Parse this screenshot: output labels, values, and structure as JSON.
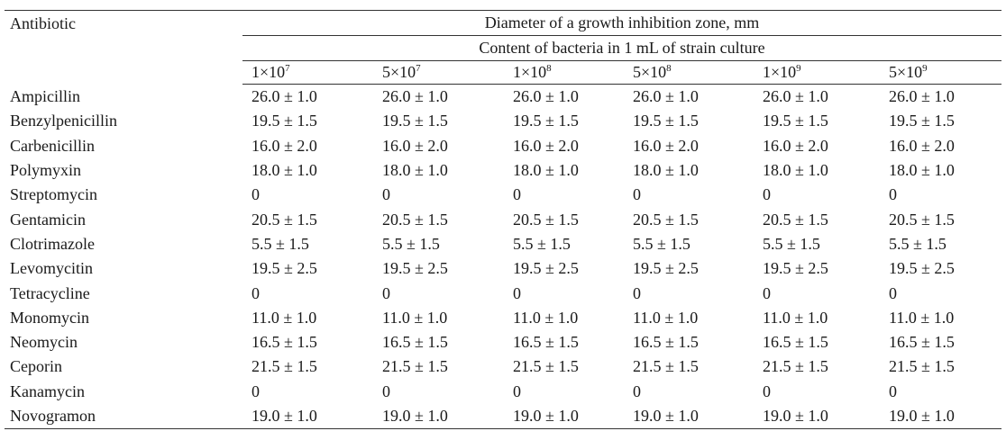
{
  "table": {
    "antibiotic_header": "Antibiotic",
    "zone_header": "Diameter of a growth inhibition zone, mm",
    "content_header": "Content of bacteria in 1 mL of strain culture",
    "concentrations": [
      {
        "base": "1×10",
        "exp": "7"
      },
      {
        "base": "5×10",
        "exp": "7"
      },
      {
        "base": "1×10",
        "exp": "8"
      },
      {
        "base": "5×10",
        "exp": "8"
      },
      {
        "base": "1×10",
        "exp": "9"
      },
      {
        "base": "5×10",
        "exp": "9"
      }
    ],
    "rows": [
      {
        "name": "Ampicillin",
        "values": [
          "26.0 ± 1.0",
          "26.0 ± 1.0",
          "26.0 ± 1.0",
          "26.0 ± 1.0",
          "26.0 ± 1.0",
          "26.0 ± 1.0"
        ]
      },
      {
        "name": "Benzylpenicillin",
        "values": [
          "19.5 ± 1.5",
          "19.5 ± 1.5",
          "19.5 ± 1.5",
          "19.5 ± 1.5",
          "19.5 ± 1.5",
          "19.5 ± 1.5"
        ]
      },
      {
        "name": "Carbenicillin",
        "values": [
          "16.0 ± 2.0",
          "16.0 ± 2.0",
          "16.0 ± 2.0",
          "16.0 ± 2.0",
          "16.0 ± 2.0",
          "16.0 ± 2.0"
        ]
      },
      {
        "name": "Polymyxin",
        "values": [
          "18.0 ± 1.0",
          "18.0 ± 1.0",
          "18.0 ± 1.0",
          "18.0 ± 1.0",
          "18.0 ± 1.0",
          "18.0 ± 1.0"
        ]
      },
      {
        "name": "Streptomycin",
        "values": [
          "0",
          "0",
          "0",
          "0",
          "0",
          "0"
        ]
      },
      {
        "name": "Gentamicin",
        "values": [
          "20.5 ± 1.5",
          "20.5 ± 1.5",
          "20.5 ± 1.5",
          "20.5 ± 1.5",
          "20.5 ± 1.5",
          "20.5 ± 1.5"
        ]
      },
      {
        "name": "Clotrimazole",
        "values": [
          "5.5 ± 1.5",
          "5.5 ± 1.5",
          "5.5 ± 1.5",
          "5.5 ± 1.5",
          "5.5 ± 1.5",
          "5.5 ± 1.5"
        ]
      },
      {
        "name": "Levomycitin",
        "values": [
          "19.5 ± 2.5",
          "19.5 ± 2.5",
          "19.5 ± 2.5",
          "19.5 ± 2.5",
          "19.5 ± 2.5",
          "19.5 ± 2.5"
        ]
      },
      {
        "name": "Tetracycline",
        "values": [
          "0",
          "0",
          "0",
          "0",
          "0",
          "0"
        ]
      },
      {
        "name": "Monomycin",
        "values": [
          "11.0 ± 1.0",
          "11.0 ± 1.0",
          "11.0 ± 1.0",
          "11.0 ± 1.0",
          "11.0 ± 1.0",
          "11.0 ± 1.0"
        ]
      },
      {
        "name": "Neomycin",
        "values": [
          "16.5 ± 1.5",
          "16.5 ± 1.5",
          "16.5 ± 1.5",
          "16.5 ± 1.5",
          "16.5 ± 1.5",
          "16.5 ± 1.5"
        ]
      },
      {
        "name": "Ceporin",
        "values": [
          "21.5 ± 1.5",
          "21.5 ± 1.5",
          "21.5 ± 1.5",
          "21.5 ± 1.5",
          "21.5 ± 1.5",
          "21.5 ± 1.5"
        ]
      },
      {
        "name": "Kanamycin",
        "values": [
          "0",
          "0",
          "0",
          "0",
          "0",
          "0"
        ]
      },
      {
        "name": "Novogramon",
        "values": [
          "19.0 ± 1.0",
          "19.0 ± 1.0",
          "19.0 ± 1.0",
          "19.0 ± 1.0",
          "19.0 ± 1.0",
          "19.0 ± 1.0"
        ]
      }
    ]
  }
}
